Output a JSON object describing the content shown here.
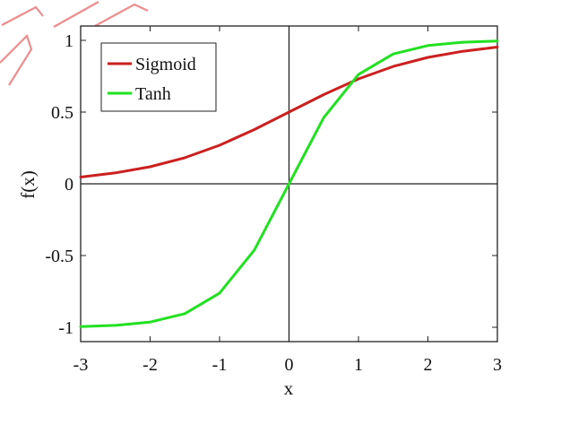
{
  "chart_data": {
    "type": "line",
    "title": "",
    "xlabel": "x",
    "ylabel": "f(x)",
    "xlim": [
      -3,
      3
    ],
    "ylim": [
      -1.1,
      1.1
    ],
    "xticks": [
      -3,
      -2,
      -1,
      0,
      1,
      2,
      3
    ],
    "xtick_labels": [
      "-3",
      "-2",
      "-1",
      "0",
      "1",
      "2",
      "3"
    ],
    "yticks": [
      1,
      0.5,
      0,
      -0.5,
      -1
    ],
    "ytick_labels": [
      "1",
      "0.5",
      "0",
      "-0.5",
      "-1"
    ],
    "grid": false,
    "legend_position": "top-left",
    "zero_lines": true,
    "x": [
      -3,
      -2.5,
      -2,
      -1.5,
      -1,
      -0.5,
      0,
      0.5,
      1,
      1.5,
      2,
      2.5,
      3
    ],
    "series": [
      {
        "name": "Sigmoid",
        "color": "#cc1f1f",
        "values": [
          0.047,
          0.076,
          0.119,
          0.182,
          0.269,
          0.378,
          0.5,
          0.622,
          0.731,
          0.818,
          0.881,
          0.924,
          0.953
        ]
      },
      {
        "name": "Tanh",
        "color": "#22e022",
        "values": [
          -0.995,
          -0.987,
          -0.964,
          -0.905,
          -0.762,
          -0.462,
          0,
          0.462,
          0.762,
          0.905,
          0.964,
          0.987,
          0.995
        ]
      }
    ]
  },
  "watermark_color": "#e03030"
}
